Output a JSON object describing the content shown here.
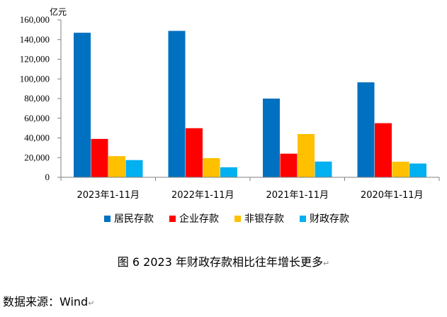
{
  "chart_data": {
    "type": "bar",
    "unit_label": "亿元",
    "categories": [
      "2023年1-11月",
      "2022年1-11月",
      "2021年1-11月",
      "2020年1-11月"
    ],
    "series": [
      {
        "name": "居民存款",
        "color": "#0070C0",
        "values": [
          146900,
          148800,
          80000,
          96500
        ]
      },
      {
        "name": "企业存款",
        "color": "#FF0000",
        "values": [
          39000,
          49900,
          24000,
          55000
        ]
      },
      {
        "name": "非银存款",
        "color": "#FFC000",
        "values": [
          21500,
          19500,
          44000,
          15800
        ]
      },
      {
        "name": "财政存款",
        "color": "#00B0F0",
        "values": [
          17500,
          10200,
          16000,
          14000
        ]
      }
    ],
    "ylim": [
      0,
      160000
    ],
    "yticks": [
      "0",
      "20,000",
      "40,000",
      "60,000",
      "80,000",
      "100,000",
      "120,000",
      "140,000",
      "160,000"
    ],
    "ytick_values": [
      0,
      20000,
      40000,
      60000,
      80000,
      100000,
      120000,
      140000,
      160000
    ],
    "grid": false,
    "legend_position": "bottom"
  },
  "caption": {
    "text": "图 6  2023 年财政存款相比往年增长更多",
    "mark": "↵"
  },
  "source": {
    "text": "数据来源：Wind",
    "mark": "↵"
  }
}
